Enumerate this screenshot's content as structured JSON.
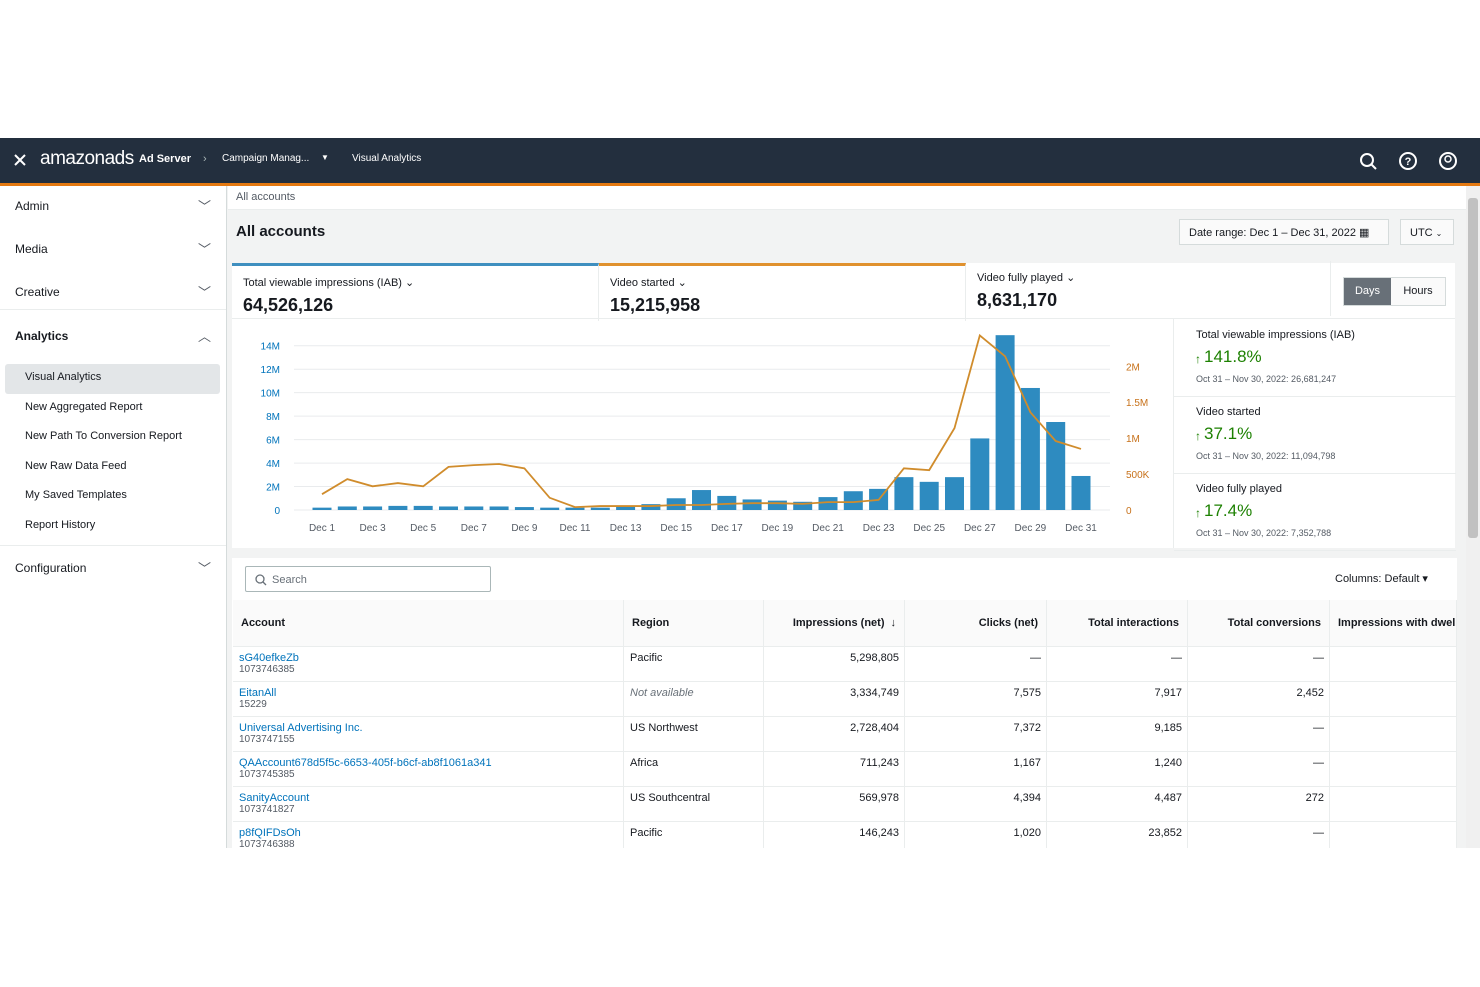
{
  "nav": {
    "logo": "amazonads",
    "product": "Ad Server",
    "crumb": "Campaign Manag...",
    "current": "Visual Analytics"
  },
  "sidebar": {
    "sections": [
      "Admin",
      "Media",
      "Creative",
      "Analytics",
      "Configuration"
    ],
    "analytics_links": [
      "Visual Analytics",
      "New Aggregated Report",
      "New Path To Conversion Report",
      "New Raw Data Feed",
      "My Saved Templates",
      "Report History"
    ]
  },
  "breadcrumb": "All accounts",
  "page_title": "All accounts",
  "date_range": "Date range: Dec 1 – Dec 31, 2022",
  "timezone": "UTC",
  "metrics": [
    {
      "value": "64,526,126"
    },
    {
      "value": "15,215,958"
    },
    {
      "label": "Video fully played",
      "value": "8,631,170"
    }
  ],
  "granularity": [
    "Days",
    "Hours"
  ],
  "comparisons": [
    {
      "label": "Total viewable impressions (IAB)",
      "change": "141.8%",
      "previous": "Oct 31 – Nov 30, 2022: 26,681,247"
    },
    {
      "label": "Video started",
      "change": "37.1%",
      "previous": "Oct 31 – Nov 30, 2022: 11,094,798"
    },
    {
      "label": "Video fully played",
      "change": "17.4%",
      "previous": "Oct 31 – Nov 30, 2022: 7,352,788"
    }
  ],
  "chart_data": {
    "type": "bar_line",
    "categories": [
      "Dec 1",
      null,
      "Dec 3",
      null,
      "Dec 5",
      null,
      "Dec 7",
      null,
      "Dec 9",
      null,
      "Dec 11",
      null,
      "Dec 13",
      null,
      "Dec 15",
      null,
      "Dec 17",
      null,
      "Dec 19",
      null,
      "Dec 21",
      null,
      "Dec 23",
      null,
      "Dec 25",
      null,
      "Dec 27",
      null,
      "Dec 29",
      null,
      "Dec 31"
    ],
    "series": [
      {
        "name": "Total viewable impressions (IAB)",
        "type": "bar",
        "color": "#2e8bc0",
        "values": [
          200000,
          300000,
          300000,
          350000,
          350000,
          300000,
          300000,
          300000,
          250000,
          200000,
          200000,
          200000,
          300000,
          500000,
          1000000,
          1700000,
          1200000,
          900000,
          800000,
          700000,
          1100000,
          1600000,
          1800000,
          2800000,
          2400000,
          2800000,
          6100000,
          14900000,
          10400000,
          7500000,
          2900000
        ]
      },
      {
        "name": "Video started",
        "type": "line",
        "axis": "y2",
        "color": "#d08c2c",
        "values": [
          220000,
          430000,
          330000,
          375000,
          330000,
          600000,
          625000,
          640000,
          580000,
          170000,
          40000,
          55000,
          55000,
          55000,
          70000,
          70000,
          85000,
          95000,
          95000,
          85000,
          110000,
          110000,
          140000,
          580000,
          555000,
          1140000,
          2430000,
          2140000,
          1360000,
          960000,
          850000
        ]
      }
    ],
    "ylim": [
      0,
      15000000
    ],
    "yticks": [
      0,
      {
        "value": 2000000,
        "label": "2M"
      },
      {
        "value": 4000000,
        "label": "4M"
      },
      {
        "value": 6000000,
        "label": "6M"
      },
      {
        "value": 8000000,
        "label": "8M"
      },
      {
        "value": 10000000,
        "label": "10M"
      },
      {
        "value": 12000000,
        "label": "12M"
      },
      {
        "value": 14000000,
        "label": "14M"
      }
    ],
    "y2lim": [
      0,
      2450000
    ],
    "y2ticks": [
      0,
      {
        "value": 500000,
        "label": "500K"
      },
      {
        "value": 1000000,
        "label": "1M"
      },
      {
        "value": 1500000,
        "label": "1.5M"
      },
      {
        "value": 2000000,
        "label": "2M"
      }
    ],
    "grid": true
  },
  "table": {
    "search_placeholder": "Search",
    "columns_menu": "Columns: Default",
    "headers": [
      "Account",
      "Region",
      "Impressions (net)",
      "Clicks (net)",
      "Total interactions",
      "Total conversions",
      "Impressions with dwel"
    ],
    "rows": [
      [
        "sG40efkeZb",
        "1073746385",
        "Pacific",
        "5,298,805",
        "—",
        "—",
        "—"
      ],
      [
        "EitanAll",
        "15229",
        "Not available",
        "3,334,749",
        "7,575",
        "7,917",
        "2,452"
      ],
      [
        "Universal Advertising Inc.",
        "1073747155",
        "US Northwest",
        "2,728,404",
        "7,372",
        "9,185",
        "—"
      ],
      [
        "QAAccount678d5f5c-6653-405f-b6cf-ab8f1061a341",
        "1073745385",
        "Africa",
        "711,243",
        "1,167",
        "1,240",
        "—"
      ],
      [
        "SanityAccount",
        "1073741827",
        "US Southcentral",
        "569,978",
        "4,394",
        "4,487",
        "272"
      ],
      [
        "p8fQIFDsOh",
        "1073746388",
        "Pacific",
        "146,243",
        "1,020",
        "23,852",
        "—"
      ]
    ]
  }
}
